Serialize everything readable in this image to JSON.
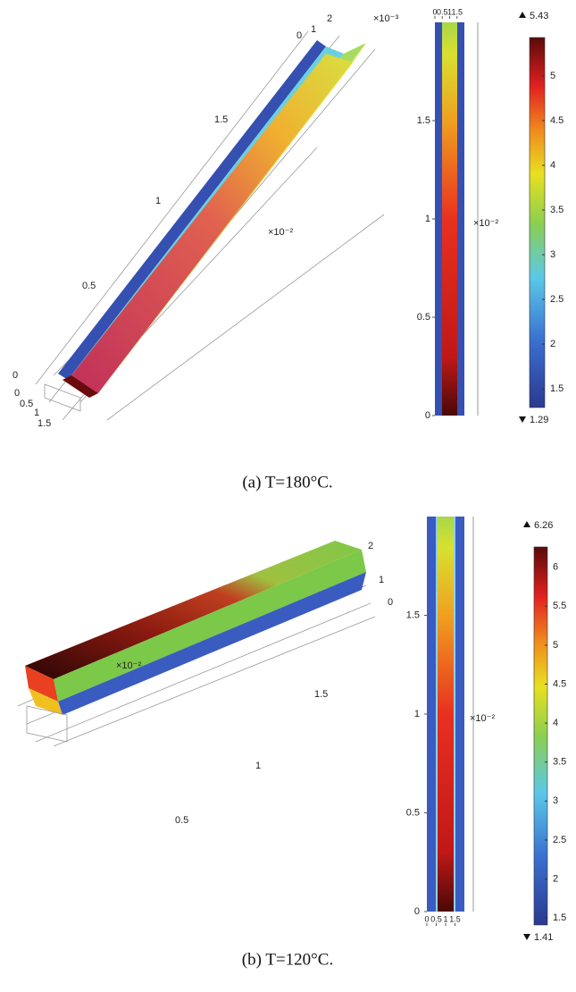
{
  "panels": [
    {
      "caption": "(a)  T=180°C.",
      "view3d": {
        "labels": [
          "0",
          "1",
          "2",
          "×10⁻³",
          "1.5",
          "1",
          "0.5",
          "×10⁻²",
          "0",
          "0",
          "0.5",
          "1",
          "1.5"
        ]
      },
      "view2d": {
        "xlim": [
          0,
          2
        ],
        "xticks": [
          0,
          0.5,
          1,
          1.5
        ],
        "ylim": [
          0,
          2
        ],
        "yticks": [
          0,
          0.5,
          1,
          1.5
        ],
        "multiplier": "×10⁻²"
      },
      "colorbar": {
        "min": 1.29,
        "max": 5.43,
        "ticks": [
          1.5,
          2,
          2.5,
          3,
          3.5,
          4,
          4.5,
          5
        ]
      }
    },
    {
      "caption": "(b)  T=120°C.",
      "view3d": {
        "labels": [
          "2",
          "1",
          "0",
          "×10⁻²",
          "1.5",
          "1",
          "0.5"
        ]
      },
      "view2d": {
        "xlim": [
          0,
          2
        ],
        "xticks": [
          0,
          0.5,
          1,
          1.5
        ],
        "ylim": [
          0,
          2
        ],
        "yticks": [
          0,
          0.5,
          1,
          1.5
        ],
        "multiplier": "×10⁻²"
      },
      "colorbar": {
        "min": 1.41,
        "max": 6.26,
        "ticks": [
          1.5,
          2,
          2.5,
          3,
          3.5,
          4,
          4.5,
          5,
          5.5,
          6
        ]
      }
    }
  ]
}
